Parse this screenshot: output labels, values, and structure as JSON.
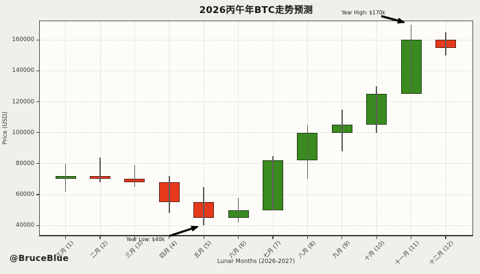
{
  "watermark": "@BruceBlue",
  "chart_data": {
    "type": "candlestick",
    "title": "2026丙午年BTC走势预测",
    "xlabel": "Lunar Months (2026-2027)",
    "ylabel": "Price (USD)",
    "ylim": [
      33000,
      172500
    ],
    "yticks": [
      40000,
      60000,
      80000,
      100000,
      120000,
      140000,
      160000
    ],
    "grid": true,
    "legend": false,
    "categories": [
      "正月 (1)",
      "二月 (2)",
      "三月 (3)",
      "四月 (4)",
      "五月 (5)",
      "六月 (6)",
      "七月 (7)",
      "八月 (8)",
      "九月 (9)",
      "十月 (10)",
      "十一月 (11)",
      "十二月 (12)"
    ],
    "series": [
      {
        "month": "正月 (1)",
        "open": 70000,
        "high": 80000,
        "low": 62000,
        "close": 72000,
        "direction": "up"
      },
      {
        "month": "二月 (2)",
        "open": 72000,
        "high": 84000,
        "low": 68000,
        "close": 70000,
        "direction": "down"
      },
      {
        "month": "三月 (3)",
        "open": 70000,
        "high": 79000,
        "low": 65000,
        "close": 68000,
        "direction": "down"
      },
      {
        "month": "四月 (4)",
        "open": 68000,
        "high": 72000,
        "low": 48000,
        "close": 55000,
        "direction": "down"
      },
      {
        "month": "五月 (5)",
        "open": 55000,
        "high": 65000,
        "low": 40000,
        "close": 45000,
        "direction": "down"
      },
      {
        "month": "六月 (6)",
        "open": 45000,
        "high": 58000,
        "low": 42000,
        "close": 50000,
        "direction": "up"
      },
      {
        "month": "七月 (7)",
        "open": 50000,
        "high": 85000,
        "low": 50000,
        "close": 82000,
        "direction": "up"
      },
      {
        "month": "八月 (8)",
        "open": 82000,
        "high": 105000,
        "low": 70000,
        "close": 100000,
        "direction": "up"
      },
      {
        "month": "九月 (9)",
        "open": 100000,
        "high": 115000,
        "low": 88000,
        "close": 105000,
        "direction": "up"
      },
      {
        "month": "十月 (10)",
        "open": 105000,
        "high": 130000,
        "low": 100000,
        "close": 125000,
        "direction": "up"
      },
      {
        "month": "十一月 (11)",
        "open": 125000,
        "high": 170000,
        "low": 125000,
        "close": 160000,
        "direction": "up"
      },
      {
        "month": "十二月 (12)",
        "open": 160000,
        "high": 165000,
        "low": 150000,
        "close": 155000,
        "direction": "down"
      }
    ],
    "colors": {
      "up": "#3a8b1f",
      "down": "#e6391b",
      "wick": "#5d5d5d",
      "arrow": "#000000"
    },
    "annotations": [
      {
        "text": "Year High: $170k",
        "target_month": "十一月 (11)",
        "target_value": 170000
      },
      {
        "text": "Year Low: $40k",
        "target_month": "五月 (5)",
        "target_value": 40000
      }
    ]
  }
}
